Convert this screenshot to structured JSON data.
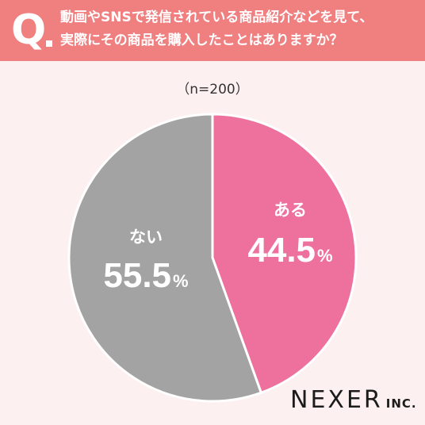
{
  "header": {
    "q_mark": "Q",
    "question_line1": "動画やSNSで発信されている商品紹介などを見て、",
    "question_line2": "実際にその商品を購入したことはありますか？"
  },
  "sample_label": "（n=200）",
  "logo": {
    "name": "NEXER",
    "suffix": "INC."
  },
  "colors": {
    "header_bg": "#f07f80",
    "page_bg": "#fdf0f0",
    "yes": "#ee709d",
    "no": "#a3a3a3"
  },
  "chart_data": {
    "type": "pie",
    "title": "",
    "labels": [
      "ある",
      "ない"
    ],
    "values": [
      44.5,
      55.5
    ],
    "value_labels": [
      "44.5",
      "55.5"
    ],
    "unit": "%",
    "colors": [
      "#ee709d",
      "#a3a3a3"
    ],
    "start": "12 o'clock",
    "direction": "clockwise"
  }
}
